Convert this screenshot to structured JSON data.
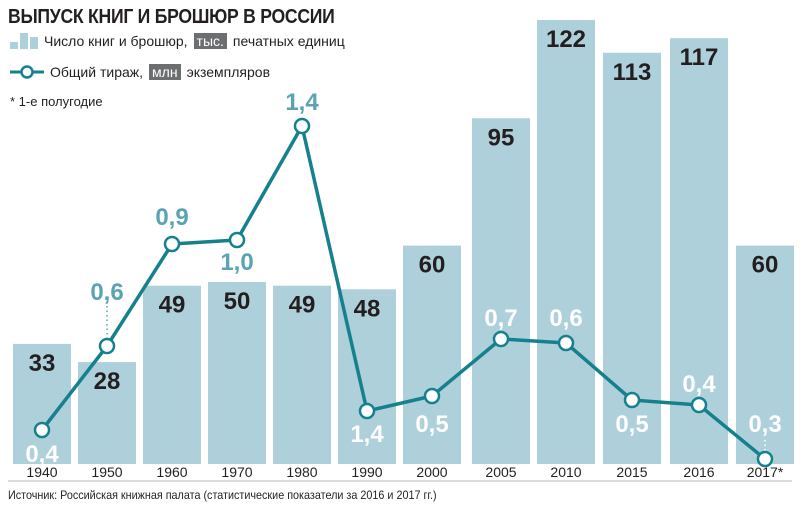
{
  "title": "ВЫПУСК КНИГ И БРОШЮР В РОССИИ",
  "legend": {
    "bars": {
      "pre": "Число книг и брошюр,",
      "unit": "тыс.",
      "post": "печатных единиц"
    },
    "line": {
      "pre": "Общий тираж,",
      "unit": "млн",
      "post": "экземпляров"
    }
  },
  "note": "* 1-е полугодие",
  "source": "Источник: Российская книжная палата (статистические показатели за 2016 и 2017 гг.)",
  "colors": {
    "bar": "#aed0da",
    "line": "#16818e",
    "line_label": "#5aa3b3",
    "bar_label": "#231f20"
  },
  "chart_data": {
    "type": "bar+line",
    "categories": [
      "1940",
      "1950",
      "1960",
      "1970",
      "1980",
      "1990",
      "2000",
      "2005",
      "2010",
      "2015",
      "2016",
      "2017*"
    ],
    "series": [
      {
        "name": "Число книг и брошюр, тыс. печатных единиц",
        "type": "bar",
        "values": [
          33,
          28,
          49,
          50,
          49,
          48,
          60,
          95,
          122,
          113,
          117,
          60
        ]
      },
      {
        "name": "Общий тираж, млн экземпляров",
        "type": "line",
        "values": [
          "0,4",
          "0,6",
          "0,9",
          "1,0",
          "1,4",
          "1,4",
          "0,5",
          "0,7",
          "0,6",
          "0,5",
          "0,4",
          "0,3"
        ]
      }
    ],
    "grid": false,
    "legend": "top-left"
  }
}
